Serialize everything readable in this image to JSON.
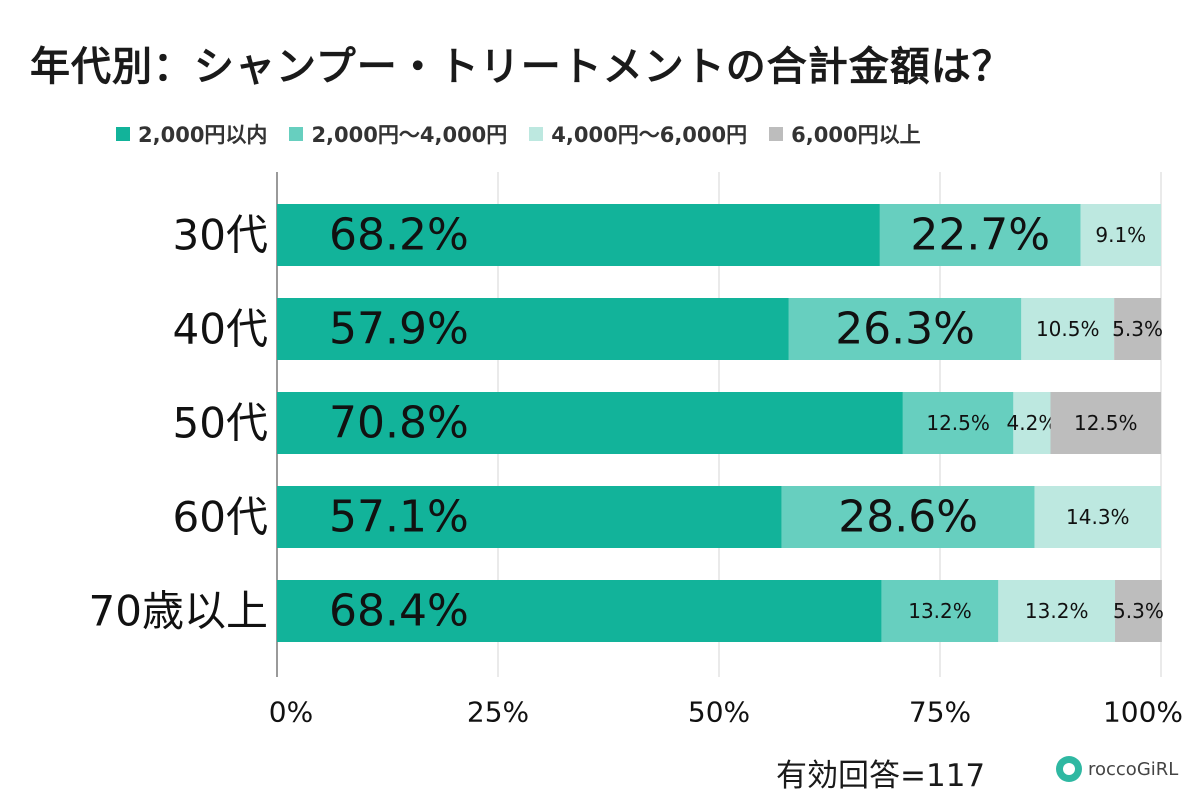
{
  "chart_data": {
    "type": "bar",
    "orientation": "horizontal",
    "stacked": true,
    "percent": true,
    "title": "年代別：シャンプー・トリートメントの合計金額は？",
    "categories": [
      "30代",
      "40代",
      "50代",
      "60代",
      "70歳以上"
    ],
    "series": [
      {
        "name": "2,000円以内",
        "color": "#12b39a",
        "values": [
          68.2,
          57.9,
          70.8,
          57.1,
          68.4
        ],
        "labels": [
          "68.2%",
          "57.9%",
          "70.8%",
          "57.1%",
          "68.4%"
        ]
      },
      {
        "name": "2,000円～4,000円",
        "color": "#67cfbf",
        "values": [
          22.7,
          26.3,
          12.5,
          28.6,
          13.2
        ],
        "labels": [
          "22.7%",
          "26.3%",
          "12.5%",
          "28.6%",
          "13.2%"
        ]
      },
      {
        "name": "4,000円～6,000円",
        "color": "#bde8e0",
        "values": [
          9.1,
          10.5,
          4.2,
          14.3,
          13.2
        ],
        "labels": [
          "9.1%",
          "10.5%",
          "4.2%",
          "14.3%",
          "13.2%"
        ]
      },
      {
        "name": "6,000円以上",
        "color": "#bdbdbd",
        "values": [
          0,
          5.3,
          12.5,
          0,
          5.3
        ],
        "labels": [
          "",
          "5.3%",
          "12.5%",
          "",
          "5.3%"
        ]
      }
    ],
    "xlim": [
      0,
      100
    ],
    "xticks": [
      "0%",
      "25%",
      "50%",
      "75%",
      "100%"
    ],
    "grid": true,
    "legend_position": "top"
  },
  "footer": "有効回答=117",
  "brand": "roccoGiRL"
}
